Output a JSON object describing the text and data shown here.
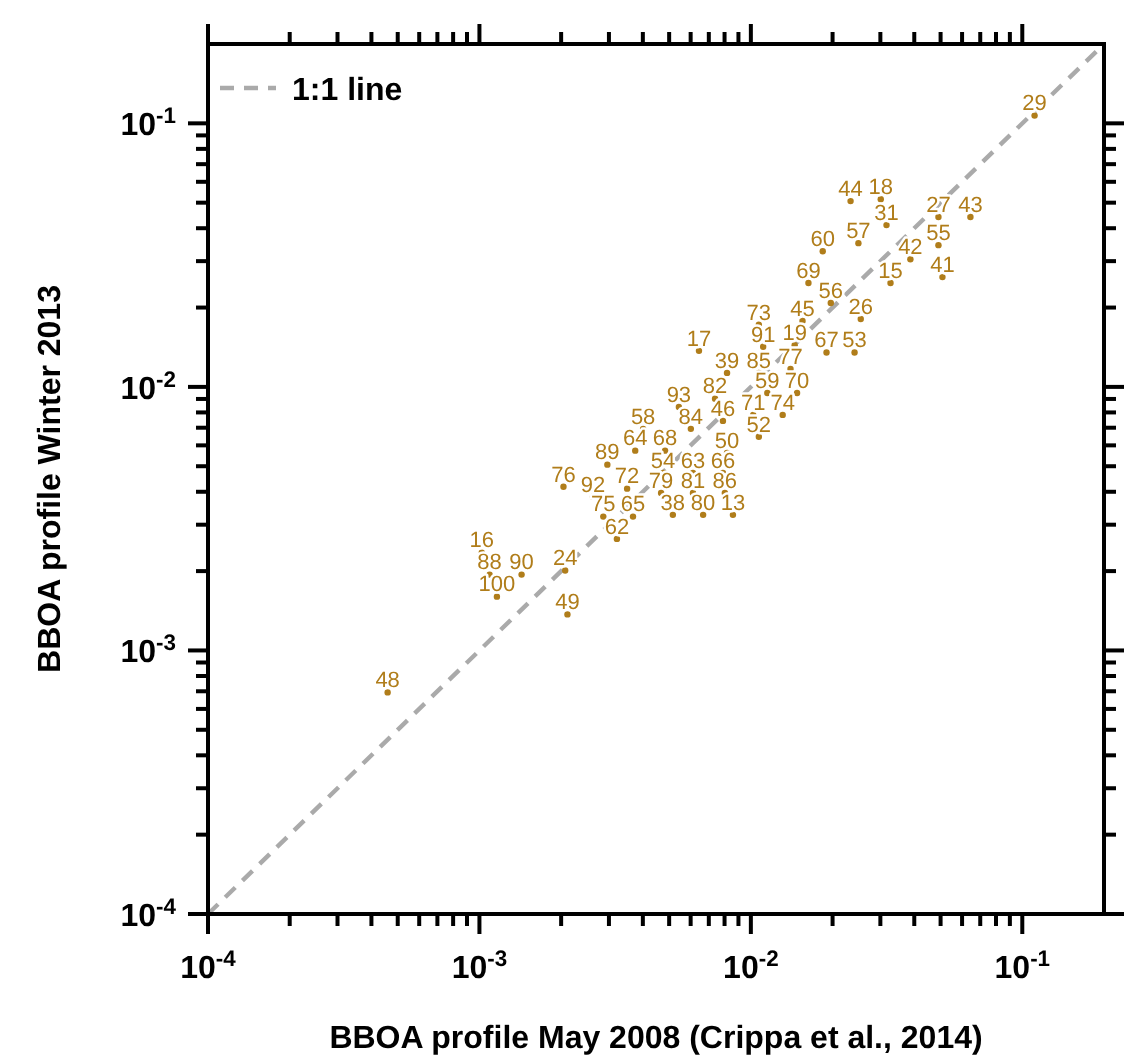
{
  "chart_data": {
    "type": "scatter",
    "grid": false,
    "xlabel": "BBOA profile May 2008 (Crippa et al., 2014)",
    "ylabel": "BBOA profile Winter 2013",
    "log": "xy",
    "xlim": [
      0.0001,
      0.2
    ],
    "ylim": [
      0.0001,
      0.2
    ],
    "xticks": [
      {
        "value": 0.0001,
        "label": "10$^{-4}$"
      },
      {
        "value": 0.0002,
        "label": null
      },
      {
        "value": 0.0003,
        "label": null
      },
      {
        "value": 0.0004,
        "label": null
      },
      {
        "value": 0.0005,
        "label": null
      },
      {
        "value": 0.0006,
        "label": null
      },
      {
        "value": 0.0007,
        "label": null
      },
      {
        "value": 0.0008,
        "label": null
      },
      {
        "value": 0.0009,
        "label": null
      },
      {
        "value": 0.001,
        "label": "10$^{-3}$"
      },
      {
        "value": 0.002,
        "label": null
      },
      {
        "value": 0.003,
        "label": null
      },
      {
        "value": 0.004,
        "label": null
      },
      {
        "value": 0.005,
        "label": null
      },
      {
        "value": 0.006,
        "label": null
      },
      {
        "value": 0.007,
        "label": null
      },
      {
        "value": 0.008,
        "label": null
      },
      {
        "value": 0.009,
        "label": null
      },
      {
        "value": 0.01,
        "label": "10$^{-2}$"
      },
      {
        "value": 0.02,
        "label": null
      },
      {
        "value": 0.03,
        "label": null
      },
      {
        "value": 0.04,
        "label": null
      },
      {
        "value": 0.05,
        "label": null
      },
      {
        "value": 0.06,
        "label": null
      },
      {
        "value": 0.07,
        "label": null
      },
      {
        "value": 0.08,
        "label": null
      },
      {
        "value": 0.09,
        "label": null
      },
      {
        "value": 0.1,
        "label": "10$^{-1}$"
      }
    ],
    "yticks": [
      {
        "value": 0.0001,
        "label": "10$^{-4}$"
      },
      {
        "value": 0.0002,
        "label": null
      },
      {
        "value": 0.0003,
        "label": null
      },
      {
        "value": 0.0004,
        "label": null
      },
      {
        "value": 0.0005,
        "label": null
      },
      {
        "value": 0.0006,
        "label": null
      },
      {
        "value": 0.0007,
        "label": null
      },
      {
        "value": 0.0008,
        "label": null
      },
      {
        "value": 0.0009,
        "label": null
      },
      {
        "value": 0.001,
        "label": "10$^{-3}$"
      },
      {
        "value": 0.002,
        "label": null
      },
      {
        "value": 0.003,
        "label": null
      },
      {
        "value": 0.004,
        "label": null
      },
      {
        "value": 0.005,
        "label": null
      },
      {
        "value": 0.006,
        "label": null
      },
      {
        "value": 0.007,
        "label": null
      },
      {
        "value": 0.008,
        "label": null
      },
      {
        "value": 0.009,
        "label": null
      },
      {
        "value": 0.01,
        "label": "10$^{-2}$"
      },
      {
        "value": 0.02,
        "label": null
      },
      {
        "value": 0.03,
        "label": null
      },
      {
        "value": 0.04,
        "label": null
      },
      {
        "value": 0.05,
        "label": null
      },
      {
        "value": 0.06,
        "label": null
      },
      {
        "value": 0.07,
        "label": null
      },
      {
        "value": 0.08,
        "label": null
      },
      {
        "value": 0.09,
        "label": null
      },
      {
        "value": 0.1,
        "label": "10$^{-1}$"
      }
    ],
    "legend": "top left",
    "series": [
      {
        "type": "line",
        "name": "1:1 line",
        "color": "#aaaaaa",
        "line_style": "dashed",
        "marker": "none",
        "x": [
          0.0001,
          0.2
        ],
        "values": [
          0.0001,
          0.2
        ]
      },
      {
        "color": "#b07d1a",
        "marker": "circle",
        "x": [
          0.111,
          0.0233,
          0.0301,
          0.0316,
          0.0491,
          0.0644,
          0.0184,
          0.0249,
          0.0491,
          0.0387,
          0.0327,
          0.0508,
          0.0163,
          0.0197,
          0.0254,
          0.0107,
          0.0155,
          0.00644,
          0.0111,
          0.0145,
          0.019,
          0.0241,
          0.00817,
          0.0107,
          0.014,
          0.0115,
          0.0148,
          0.0131,
          0.0102,
          0.00738,
          0.00543,
          0.00789,
          0.00401,
          0.00601,
          0.0107,
          0.00375,
          0.00483,
          0.00817,
          0.00296,
          0.00475,
          0.00612,
          0.00789,
          0.00204,
          0.0035,
          0.00467,
          0.00612,
          0.00802,
          0.00262,
          0.00286,
          0.00368,
          0.00516,
          0.00667,
          0.00859,
          0.00321,
          0.00102,
          0.00109,
          0.00143,
          0.00116,
          0.00207,
          0.00211,
          0.000459
        ],
        "values": [
          0.107,
          0.0507,
          0.0515,
          0.0411,
          0.0441,
          0.0441,
          0.0327,
          0.0351,
          0.0345,
          0.0305,
          0.0248,
          0.0261,
          0.0248,
          0.0208,
          0.0181,
          0.0172,
          0.0178,
          0.0137,
          0.0142,
          0.0144,
          0.0135,
          0.0135,
          0.0113,
          0.0113,
          0.0117,
          0.00948,
          0.00948,
          0.00783,
          0.00783,
          0.00902,
          0.00839,
          0.00743,
          0.00693,
          0.00693,
          0.00647,
          0.00573,
          0.00573,
          0.00562,
          0.00507,
          0.00472,
          0.00472,
          0.00472,
          0.00418,
          0.00411,
          0.00396,
          0.00396,
          0.00396,
          0.00383,
          0.00322,
          0.00322,
          0.00327,
          0.00327,
          0.00327,
          0.00265,
          0.00235,
          0.00194,
          0.00194,
          0.0016,
          0.00201,
          0.00137,
          0.000693
        ]
      }
    ],
    "annotations": [
      {
        "text": "29",
        "x": 0.111,
        "y": 0.107
      },
      {
        "text": "44",
        "x": 0.0233,
        "y": 0.0507
      },
      {
        "text": "18",
        "x": 0.0301,
        "y": 0.0515
      },
      {
        "text": "31",
        "x": 0.0316,
        "y": 0.0411
      },
      {
        "text": "27",
        "x": 0.0491,
        "y": 0.0441
      },
      {
        "text": "43",
        "x": 0.0644,
        "y": 0.0441
      },
      {
        "text": "60",
        "x": 0.0184,
        "y": 0.0327
      },
      {
        "text": "57",
        "x": 0.0249,
        "y": 0.0351
      },
      {
        "text": "55",
        "x": 0.0491,
        "y": 0.0345
      },
      {
        "text": "42",
        "x": 0.0387,
        "y": 0.0305
      },
      {
        "text": "15",
        "x": 0.0327,
        "y": 0.0248
      },
      {
        "text": "41",
        "x": 0.0508,
        "y": 0.0261
      },
      {
        "text": "69",
        "x": 0.0163,
        "y": 0.0248
      },
      {
        "text": "56",
        "x": 0.0197,
        "y": 0.0208
      },
      {
        "text": "26",
        "x": 0.0254,
        "y": 0.0181
      },
      {
        "text": "73",
        "x": 0.0107,
        "y": 0.0172
      },
      {
        "text": "45",
        "x": 0.0155,
        "y": 0.0178
      },
      {
        "text": "17",
        "x": 0.00644,
        "y": 0.0137
      },
      {
        "text": "91",
        "x": 0.0111,
        "y": 0.0142
      },
      {
        "text": "19",
        "x": 0.0145,
        "y": 0.0144
      },
      {
        "text": "67",
        "x": 0.019,
        "y": 0.0135
      },
      {
        "text": "53",
        "x": 0.0241,
        "y": 0.0135
      },
      {
        "text": "39",
        "x": 0.00817,
        "y": 0.0113
      },
      {
        "text": "85",
        "x": 0.0107,
        "y": 0.0113
      },
      {
        "text": "77",
        "x": 0.014,
        "y": 0.0117
      },
      {
        "text": "59",
        "x": 0.0115,
        "y": 0.00948
      },
      {
        "text": "70",
        "x": 0.0148,
        "y": 0.00948
      },
      {
        "text": "74",
        "x": 0.0131,
        "y": 0.00783
      },
      {
        "text": "71",
        "x": 0.0102,
        "y": 0.00783
      },
      {
        "text": "82",
        "x": 0.00738,
        "y": 0.00902
      },
      {
        "text": "93",
        "x": 0.00543,
        "y": 0.00839
      },
      {
        "text": "46",
        "x": 0.00789,
        "y": 0.00743
      },
      {
        "text": "58",
        "x": 0.00401,
        "y": 0.00693
      },
      {
        "text": "84",
        "x": 0.00601,
        "y": 0.00693
      },
      {
        "text": "52",
        "x": 0.0107,
        "y": 0.00647
      },
      {
        "text": "64",
        "x": 0.00375,
        "y": 0.00573
      },
      {
        "text": "68",
        "x": 0.00483,
        "y": 0.00573
      },
      {
        "text": "50",
        "x": 0.00817,
        "y": 0.00562
      },
      {
        "text": "89",
        "x": 0.00296,
        "y": 0.00507
      },
      {
        "text": "54",
        "x": 0.00475,
        "y": 0.00472
      },
      {
        "text": "63",
        "x": 0.00612,
        "y": 0.00472
      },
      {
        "text": "66",
        "x": 0.00789,
        "y": 0.00472
      },
      {
        "text": "76",
        "x": 0.00204,
        "y": 0.00418
      },
      {
        "text": "72",
        "x": 0.0035,
        "y": 0.00411
      },
      {
        "text": "79",
        "x": 0.00467,
        "y": 0.00396
      },
      {
        "text": "81",
        "x": 0.00612,
        "y": 0.00396
      },
      {
        "text": "86",
        "x": 0.00802,
        "y": 0.00396
      },
      {
        "text": "92",
        "x": 0.00262,
        "y": 0.00383
      },
      {
        "text": "75",
        "x": 0.00286,
        "y": 0.00322
      },
      {
        "text": "65",
        "x": 0.00368,
        "y": 0.00322
      },
      {
        "text": "38",
        "x": 0.00516,
        "y": 0.00327
      },
      {
        "text": "80",
        "x": 0.00667,
        "y": 0.00327
      },
      {
        "text": "13",
        "x": 0.00859,
        "y": 0.00327
      },
      {
        "text": "62",
        "x": 0.00321,
        "y": 0.00265
      },
      {
        "text": "16",
        "x": 0.00102,
        "y": 0.00235
      },
      {
        "text": "88",
        "x": 0.00109,
        "y": 0.00194
      },
      {
        "text": "90",
        "x": 0.00143,
        "y": 0.00194
      },
      {
        "text": "100",
        "x": 0.00116,
        "y": 0.0016
      },
      {
        "text": "24",
        "x": 0.00207,
        "y": 0.00201
      },
      {
        "text": "49",
        "x": 0.00211,
        "y": 0.00137
      },
      {
        "text": "48",
        "x": 0.000459,
        "y": 0.000693
      }
    ]
  }
}
